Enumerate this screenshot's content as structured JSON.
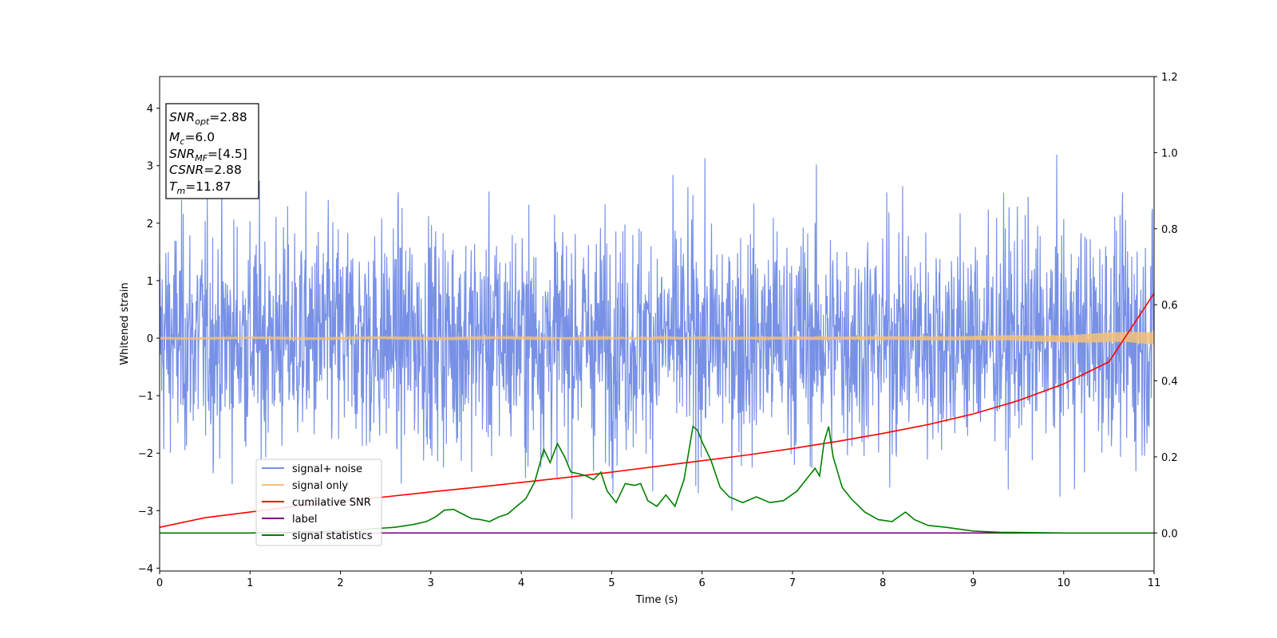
{
  "chart_data": {
    "type": "line",
    "xlabel": "Time (s)",
    "ylabel": "Whitened strain",
    "xlim": [
      0,
      11
    ],
    "ylim": [
      -4.05,
      4.55
    ],
    "y2lim": [
      -0.1,
      1.2
    ],
    "xticks": [
      0,
      1,
      2,
      3,
      4,
      5,
      6,
      7,
      8,
      9,
      10,
      11
    ],
    "yticks": [
      -4,
      -3,
      -2,
      -1,
      0,
      1,
      2,
      3,
      4
    ],
    "y2ticks": [
      0.0,
      0.2,
      0.4,
      0.6,
      0.8,
      1.0,
      1.2
    ],
    "y2tick_labels": [
      "0.0",
      "0.2",
      "0.4",
      "0.6",
      "0.8",
      "1.0",
      "1.2"
    ],
    "grid": false,
    "legend_position": "lower-left",
    "info_box": {
      "lines": [
        {
          "sym": "SNR",
          "sub": "opt",
          "val": "=2.88"
        },
        {
          "sym": "M",
          "sub": "c",
          "val": "=6.0"
        },
        {
          "sym": "SNR",
          "sub": "MF",
          "val": "=[4.5]"
        },
        {
          "sym": "CSNR",
          "sub": "",
          "val": "=2.88"
        },
        {
          "sym": "T",
          "sub": "m",
          "val": "=11.87"
        }
      ]
    },
    "series": [
      {
        "name": "signal+ noise",
        "color": "#7891e6",
        "axis": "left",
        "kind": "noise",
        "envelope": {
          "typical_amplitude": 1.6,
          "max": 4.15,
          "min": -3.65
        }
      },
      {
        "name": "signal only",
        "color": "#f5c178",
        "axis": "left",
        "kind": "chirp",
        "x": [
          0,
          5,
          9,
          10,
          10.5,
          11
        ],
        "amplitude": [
          0.01,
          0.015,
          0.04,
          0.07,
          0.1,
          0.12
        ]
      },
      {
        "name": "cumilative SNR",
        "color": "#ff0000",
        "axis": "right",
        "x": [
          0,
          0.5,
          1,
          1.5,
          2,
          2.5,
          3,
          3.5,
          4,
          4.5,
          5,
          5.5,
          6,
          6.5,
          7,
          7.5,
          8,
          8.5,
          9,
          9.5,
          10,
          10.5,
          11
        ],
        "y": [
          0.015,
          0.04,
          0.055,
          0.07,
          0.083,
          0.095,
          0.108,
          0.12,
          0.133,
          0.146,
          0.16,
          0.175,
          0.19,
          0.205,
          0.222,
          0.241,
          0.262,
          0.285,
          0.313,
          0.348,
          0.392,
          0.45,
          0.63
        ]
      },
      {
        "name": "label",
        "color": "#800080",
        "axis": "right",
        "x": [
          0,
          11
        ],
        "y": [
          0.0,
          0.0
        ]
      },
      {
        "name": "signal statistics",
        "color": "#008000",
        "axis": "right",
        "x": [
          0,
          0.5,
          1,
          1.5,
          2,
          2.3,
          2.6,
          2.8,
          2.95,
          3.05,
          3.15,
          3.25,
          3.35,
          3.45,
          3.55,
          3.65,
          3.75,
          3.85,
          3.95,
          4.05,
          4.15,
          4.25,
          4.32,
          4.4,
          4.48,
          4.55,
          4.65,
          4.72,
          4.8,
          4.88,
          4.95,
          5.05,
          5.15,
          5.25,
          5.32,
          5.4,
          5.5,
          5.6,
          5.7,
          5.8,
          5.9,
          5.95,
          6.0,
          6.1,
          6.2,
          6.3,
          6.45,
          6.6,
          6.75,
          6.9,
          7.05,
          7.15,
          7.25,
          7.3,
          7.35,
          7.4,
          7.45,
          7.55,
          7.65,
          7.8,
          7.95,
          8.1,
          8.25,
          8.35,
          8.5,
          8.7,
          9.0,
          9.3,
          10.0,
          11.0
        ],
        "y": [
          0.0,
          0.0,
          0.0,
          0.002,
          0.005,
          0.01,
          0.015,
          0.022,
          0.03,
          0.042,
          0.06,
          0.062,
          0.05,
          0.038,
          0.035,
          0.03,
          0.042,
          0.05,
          0.07,
          0.09,
          0.135,
          0.22,
          0.185,
          0.235,
          0.2,
          0.16,
          0.155,
          0.15,
          0.14,
          0.16,
          0.11,
          0.08,
          0.13,
          0.125,
          0.13,
          0.085,
          0.07,
          0.1,
          0.07,
          0.14,
          0.28,
          0.27,
          0.24,
          0.19,
          0.12,
          0.095,
          0.08,
          0.095,
          0.08,
          0.085,
          0.11,
          0.14,
          0.17,
          0.15,
          0.24,
          0.28,
          0.2,
          0.12,
          0.09,
          0.055,
          0.035,
          0.03,
          0.055,
          0.035,
          0.02,
          0.015,
          0.005,
          0.002,
          0.0,
          0.0
        ]
      }
    ]
  }
}
